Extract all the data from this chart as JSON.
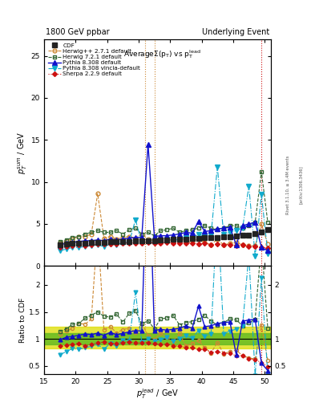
{
  "title_left": "1800 GeV ppbar",
  "title_right": "Underlying Event",
  "ylabel_main": "$p_T^{sum}$ / GeV",
  "ylabel_ratio": "Ratio to CDF",
  "xlabel": "$p_T^{lead}$ / GeV",
  "rivet_text": "Rivet 3.1.10, ≥ 3.4M events",
  "arxiv_text": "[arXiv:1306.3436]",
  "xlim": [
    15,
    51
  ],
  "ylim_main": [
    0,
    27
  ],
  "ylim_ratio": [
    0.35,
    2.35
  ],
  "vlines_orange": [
    31.0,
    32.5
  ],
  "vline_red": 49.5,
  "cdf_x": [
    17.5,
    18.5,
    19.5,
    20.5,
    21.5,
    22.5,
    23.5,
    24.5,
    25.5,
    26.5,
    27.5,
    28.5,
    29.5,
    30.5,
    31.5,
    32.5,
    33.5,
    34.5,
    35.5,
    36.5,
    37.5,
    38.5,
    39.5,
    40.5,
    41.5,
    42.5,
    43.5,
    44.5,
    45.5,
    46.5,
    47.5,
    48.5,
    49.5,
    50.5
  ],
  "cdf_y": [
    2.55,
    2.62,
    2.68,
    2.72,
    2.75,
    2.78,
    2.8,
    2.82,
    2.85,
    2.88,
    2.9,
    2.92,
    2.95,
    2.97,
    3.0,
    3.03,
    3.06,
    3.1,
    3.14,
    3.18,
    3.22,
    3.26,
    3.3,
    3.34,
    3.38,
    3.42,
    3.46,
    3.5,
    3.55,
    3.62,
    3.7,
    3.82,
    4.0,
    4.35
  ],
  "herwig271_x": [
    17.5,
    18.5,
    19.5,
    20.5,
    21.5,
    22.5,
    23.5,
    24.5,
    25.5,
    26.5,
    27.5,
    28.5,
    29.5,
    30.5,
    31.5,
    32.5,
    33.5,
    34.5,
    35.5,
    36.5,
    37.5,
    38.5,
    39.5,
    40.5,
    41.5,
    42.5,
    43.5,
    44.5,
    45.5,
    46.5,
    47.5,
    48.5,
    49.5,
    50.5
  ],
  "herwig271_y": [
    2.8,
    3.0,
    3.2,
    3.5,
    3.5,
    3.8,
    8.6,
    3.3,
    3.5,
    3.2,
    3.4,
    3.5,
    3.3,
    3.8,
    3.2,
    3.0,
    3.4,
    3.2,
    3.0,
    3.5,
    2.8,
    3.0,
    3.2,
    2.8,
    2.5,
    3.2,
    2.5,
    2.7,
    2.8,
    2.5,
    2.4,
    2.4,
    5.0,
    2.6
  ],
  "herwig721_x": [
    17.5,
    18.5,
    19.5,
    20.5,
    21.5,
    22.5,
    23.5,
    24.5,
    25.5,
    26.5,
    27.5,
    28.5,
    29.5,
    30.5,
    31.5,
    32.5,
    33.5,
    34.5,
    35.5,
    36.5,
    37.5,
    38.5,
    39.5,
    40.5,
    41.5,
    42.5,
    43.5,
    44.5,
    45.5,
    46.5,
    47.5,
    48.5,
    49.5,
    50.5
  ],
  "herwig721_y": [
    2.9,
    3.1,
    3.4,
    3.5,
    3.8,
    4.0,
    4.2,
    4.0,
    4.0,
    4.2,
    3.8,
    4.3,
    4.5,
    3.8,
    4.0,
    3.6,
    4.2,
    4.3,
    4.5,
    4.0,
    4.2,
    4.3,
    4.5,
    4.8,
    4.5,
    4.3,
    4.5,
    4.8,
    4.8,
    4.5,
    4.8,
    5.2,
    11.2,
    5.2
  ],
  "pythia308_x": [
    17.5,
    18.5,
    19.5,
    20.5,
    21.5,
    22.5,
    23.5,
    24.5,
    25.5,
    26.5,
    27.5,
    28.5,
    29.5,
    30.5,
    31.5,
    32.5,
    33.5,
    34.5,
    35.5,
    36.5,
    37.5,
    38.5,
    39.5,
    40.5,
    41.5,
    42.5,
    43.5,
    44.5,
    45.5,
    46.5,
    47.5,
    48.5,
    49.5,
    50.5
  ],
  "pythia308_y": [
    2.5,
    2.7,
    2.8,
    2.9,
    3.0,
    3.0,
    3.1,
    3.0,
    3.2,
    3.1,
    3.2,
    3.3,
    3.4,
    3.4,
    14.5,
    3.5,
    3.6,
    3.6,
    3.7,
    3.8,
    4.0,
    3.9,
    5.3,
    4.1,
    4.2,
    4.4,
    4.5,
    4.6,
    2.5,
    4.8,
    5.0,
    5.2,
    2.2,
    1.8
  ],
  "pythia308v_x": [
    17.5,
    18.5,
    19.5,
    20.5,
    21.5,
    22.5,
    23.5,
    24.5,
    25.5,
    26.5,
    27.5,
    28.5,
    29.5,
    30.5,
    31.5,
    32.5,
    33.5,
    34.5,
    35.5,
    36.5,
    37.5,
    38.5,
    39.5,
    40.5,
    41.5,
    42.5,
    43.5,
    44.5,
    45.5,
    46.5,
    47.5,
    48.5,
    49.5,
    50.5
  ],
  "pythia308v_y": [
    1.8,
    2.0,
    2.2,
    2.2,
    2.3,
    2.4,
    2.5,
    2.3,
    2.6,
    2.5,
    2.8,
    2.8,
    5.5,
    2.8,
    3.0,
    2.9,
    3.0,
    3.2,
    3.0,
    3.2,
    3.4,
    3.3,
    3.8,
    3.5,
    3.7,
    11.8,
    3.8,
    4.0,
    4.2,
    4.5,
    9.5,
    1.2,
    8.5,
    1.5
  ],
  "sherpa229_x": [
    17.5,
    18.5,
    19.5,
    20.5,
    21.5,
    22.5,
    23.5,
    24.5,
    25.5,
    26.5,
    27.5,
    28.5,
    29.5,
    30.5,
    31.5,
    32.5,
    33.5,
    34.5,
    35.5,
    36.5,
    37.5,
    38.5,
    39.5,
    40.5,
    41.5,
    42.5,
    43.5,
    44.5,
    45.5,
    46.5,
    47.5,
    48.5,
    49.5,
    50.5
  ],
  "sherpa229_y": [
    2.2,
    2.3,
    2.4,
    2.5,
    2.4,
    2.5,
    2.6,
    2.65,
    2.6,
    2.65,
    2.7,
    2.75,
    2.72,
    2.75,
    2.8,
    2.75,
    2.75,
    2.8,
    2.75,
    2.75,
    2.7,
    2.75,
    2.65,
    2.68,
    2.55,
    2.6,
    2.55,
    2.55,
    2.45,
    2.5,
    2.35,
    2.35,
    2.25,
    2.1
  ],
  "colors": {
    "cdf": "#222222",
    "herwig271": "#cc8833",
    "herwig721": "#336633",
    "pythia308": "#1111cc",
    "pythia308v": "#11aacc",
    "sherpa229": "#cc1111"
  },
  "ratio_band_yellow": [
    0.82,
    1.22
  ],
  "ratio_band_green": [
    0.9,
    1.1
  ],
  "ratio_band_color_yellow": "#dddd00",
  "ratio_band_color_green": "#66bb22"
}
